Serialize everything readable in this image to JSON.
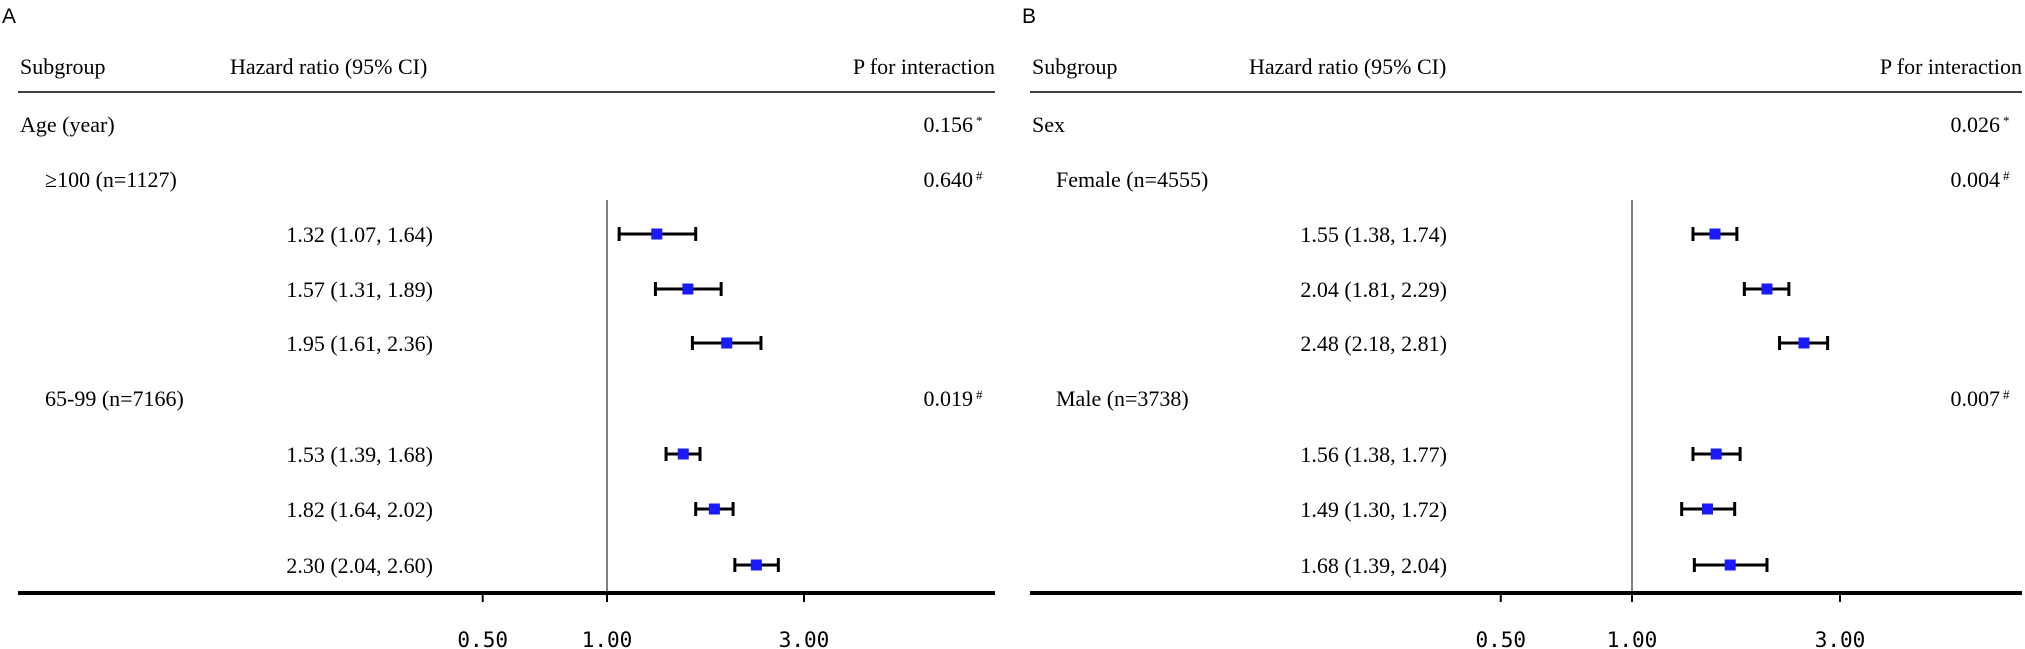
{
  "chart_data": [
    {
      "type": "forest",
      "panel": "A",
      "headers": {
        "subgroup": "Subgroup",
        "hr": "Hazard ratio (95% CI)",
        "p": "P for interaction"
      },
      "xaxis": {
        "scale": "log",
        "ticks": [
          "0.50",
          "1.00",
          "3.00"
        ],
        "tick_values": [
          0.5,
          1.0,
          3.0
        ],
        "range": [
          0.4,
          5.0
        ],
        "reference": 1.0
      },
      "rows": [
        {
          "kind": "group",
          "label": "Age (year)",
          "p": "0.156",
          "mark": "*"
        },
        {
          "kind": "subgroup",
          "label": "≥100 (n=1127)",
          "p": "0.640",
          "mark": "#"
        },
        {
          "kind": "estimate",
          "text": "1.32 (1.07, 1.64)",
          "hr": 1.32,
          "lo": 1.07,
          "hi": 1.64
        },
        {
          "kind": "estimate",
          "text": "1.57 (1.31, 1.89)",
          "hr": 1.57,
          "lo": 1.31,
          "hi": 1.89
        },
        {
          "kind": "estimate",
          "text": "1.95 (1.61, 2.36)",
          "hr": 1.95,
          "lo": 1.61,
          "hi": 2.36
        },
        {
          "kind": "subgroup",
          "label": "65-99 (n=7166)",
          "p": "0.019",
          "mark": "#"
        },
        {
          "kind": "estimate",
          "text": "1.53 (1.39, 1.68)",
          "hr": 1.53,
          "lo": 1.39,
          "hi": 1.68
        },
        {
          "kind": "estimate",
          "text": "1.82 (1.64, 2.02)",
          "hr": 1.82,
          "lo": 1.64,
          "hi": 2.02
        },
        {
          "kind": "estimate",
          "text": "2.30 (2.04, 2.60)",
          "hr": 2.3,
          "lo": 2.04,
          "hi": 2.6
        }
      ]
    },
    {
      "type": "forest",
      "panel": "B",
      "headers": {
        "subgroup": "Subgroup",
        "hr": "Hazard ratio (95% CI)",
        "p": "P for interaction"
      },
      "xaxis": {
        "scale": "log",
        "ticks": [
          "0.50",
          "1.00",
          "3.00"
        ],
        "tick_values": [
          0.5,
          1.0,
          3.0
        ],
        "range": [
          0.4,
          5.0
        ],
        "reference": 1.0
      },
      "rows": [
        {
          "kind": "group",
          "label": "Sex",
          "p": "0.026",
          "mark": "*"
        },
        {
          "kind": "subgroup",
          "label": "Female (n=4555)",
          "p": "0.004",
          "mark": "#"
        },
        {
          "kind": "estimate",
          "text": "1.55 (1.38, 1.74)",
          "hr": 1.55,
          "lo": 1.38,
          "hi": 1.74
        },
        {
          "kind": "estimate",
          "text": "2.04 (1.81, 2.29)",
          "hr": 2.04,
          "lo": 1.81,
          "hi": 2.29
        },
        {
          "kind": "estimate",
          "text": "2.48 (2.18, 2.81)",
          "hr": 2.48,
          "lo": 2.18,
          "hi": 2.81
        },
        {
          "kind": "subgroup",
          "label": "Male (n=3738)",
          "p": "0.007",
          "mark": "#"
        },
        {
          "kind": "estimate",
          "text": "1.56 (1.38, 1.77)",
          "hr": 1.56,
          "lo": 1.38,
          "hi": 1.77
        },
        {
          "kind": "estimate",
          "text": "1.49 (1.30, 1.72)",
          "hr": 1.49,
          "lo": 1.3,
          "hi": 1.72
        },
        {
          "kind": "estimate",
          "text": "1.68 (1.39, 2.04)",
          "hr": 1.68,
          "lo": 1.39,
          "hi": 2.04
        }
      ]
    }
  ],
  "colors": {
    "marker": "#1a1aff",
    "line": "#000000",
    "reference_line": "#7f7f7f"
  }
}
